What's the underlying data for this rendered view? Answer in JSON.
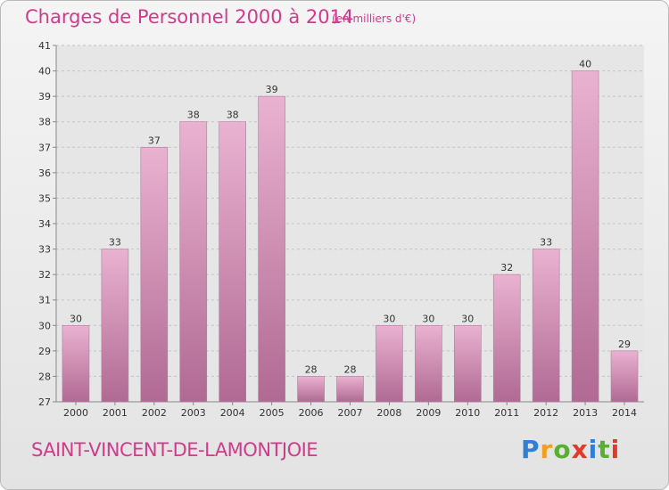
{
  "header": {
    "title": "Charges de Personnel 2000 à 2014",
    "subtitle": "(en milliers d'€)"
  },
  "footer": {
    "commune": "SAINT-VINCENT-DE-LAMONTJOIE",
    "logo": [
      "P",
      "r",
      "o",
      "x",
      "i",
      "t",
      "i"
    ]
  },
  "colors": {
    "title": "#d23a8a",
    "bar": "#c9709f",
    "bar_light": "#eab2d1",
    "plot_bg": "#e6e6e6"
  },
  "chart_data": {
    "type": "bar",
    "title": "Charges de Personnel 2000 à 2014",
    "subtitle": "(en milliers d'€)",
    "categories": [
      "2000",
      "2001",
      "2002",
      "2003",
      "2004",
      "2005",
      "2006",
      "2007",
      "2008",
      "2009",
      "2010",
      "2011",
      "2012",
      "2013",
      "2014"
    ],
    "values": [
      30,
      33,
      37,
      38,
      38,
      39,
      28,
      28,
      30,
      30,
      30,
      32,
      33,
      40,
      29
    ],
    "ylim": [
      27,
      41
    ],
    "yticks": [
      27,
      28,
      29,
      30,
      31,
      32,
      33,
      34,
      35,
      36,
      37,
      38,
      39,
      40,
      41
    ],
    "grid": "horizontal-dashed",
    "legend": "none"
  }
}
